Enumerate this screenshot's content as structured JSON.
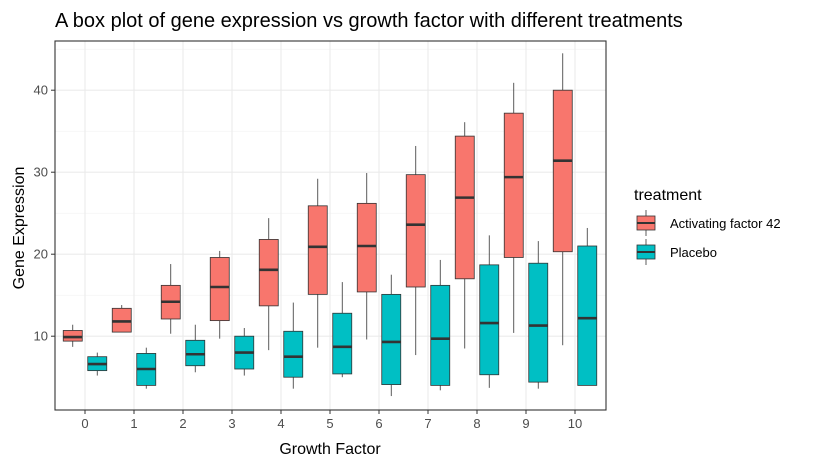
{
  "chart_data": {
    "type": "box",
    "title": "A box plot of gene expression vs growth factor with different treatments",
    "xlabel": "Growth Factor",
    "ylabel": "Gene Expression",
    "ylim": [
      1,
      46
    ],
    "yticks": [
      10,
      20,
      30,
      40
    ],
    "categories": [
      "0",
      "1",
      "2",
      "3",
      "4",
      "5",
      "6",
      "7",
      "8",
      "9",
      "10"
    ],
    "grid": true,
    "legend": {
      "title": "treatment",
      "position": "right"
    },
    "series": [
      {
        "name": "Activating factor 42",
        "color": "#F8766D",
        "boxes": [
          {
            "min": 8.7,
            "q1": 9.4,
            "median": 9.9,
            "q3": 10.7,
            "max": 11.4
          },
          {
            "min": 10.5,
            "q1": 10.5,
            "median": 11.8,
            "q3": 13.4,
            "max": 13.8
          },
          {
            "min": 10.3,
            "q1": 12.1,
            "median": 14.2,
            "q3": 16.2,
            "max": 18.8
          },
          {
            "min": 9.7,
            "q1": 11.9,
            "median": 16.0,
            "q3": 19.6,
            "max": 20.4
          },
          {
            "min": 8.3,
            "q1": 13.7,
            "median": 18.1,
            "q3": 21.8,
            "max": 24.4
          },
          {
            "min": 8.6,
            "q1": 15.1,
            "median": 20.9,
            "q3": 25.9,
            "max": 29.2
          },
          {
            "min": 9.6,
            "q1": 15.4,
            "median": 21.0,
            "q3": 26.2,
            "max": 29.9
          },
          {
            "min": 7.7,
            "q1": 16.0,
            "median": 23.6,
            "q3": 29.7,
            "max": 33.2
          },
          {
            "min": 8.5,
            "q1": 17.0,
            "median": 26.9,
            "q3": 34.4,
            "max": 36.1
          },
          {
            "min": 10.4,
            "q1": 19.6,
            "median": 29.4,
            "q3": 37.2,
            "max": 40.9
          },
          {
            "min": 8.9,
            "q1": 20.3,
            "median": 31.4,
            "q3": 40.0,
            "max": 44.5
          }
        ]
      },
      {
        "name": "Placebo",
        "color": "#00BFC4",
        "boxes": [
          {
            "min": 5.2,
            "q1": 5.8,
            "median": 6.6,
            "q3": 7.5,
            "max": 8.0
          },
          {
            "min": 3.6,
            "q1": 4.0,
            "median": 6.0,
            "q3": 7.9,
            "max": 8.6
          },
          {
            "min": 5.6,
            "q1": 6.4,
            "median": 7.8,
            "q3": 9.5,
            "max": 11.4
          },
          {
            "min": 5.2,
            "q1": 6.0,
            "median": 8.0,
            "q3": 10.0,
            "max": 11.0
          },
          {
            "min": 3.6,
            "q1": 5.0,
            "median": 7.5,
            "q3": 10.6,
            "max": 14.1
          },
          {
            "min": 5.0,
            "q1": 5.4,
            "median": 8.7,
            "q3": 12.8,
            "max": 16.6
          },
          {
            "min": 2.7,
            "q1": 4.1,
            "median": 9.3,
            "q3": 15.1,
            "max": 17.5
          },
          {
            "min": 3.4,
            "q1": 4.0,
            "median": 9.7,
            "q3": 16.2,
            "max": 19.3
          },
          {
            "min": 3.7,
            "q1": 5.3,
            "median": 11.6,
            "q3": 18.7,
            "max": 22.3
          },
          {
            "min": 3.6,
            "q1": 4.4,
            "median": 11.3,
            "q3": 18.9,
            "max": 21.6
          },
          {
            "min": 4.0,
            "q1": 4.0,
            "median": 12.2,
            "q3": 21.0,
            "max": 23.2
          }
        ]
      }
    ]
  }
}
